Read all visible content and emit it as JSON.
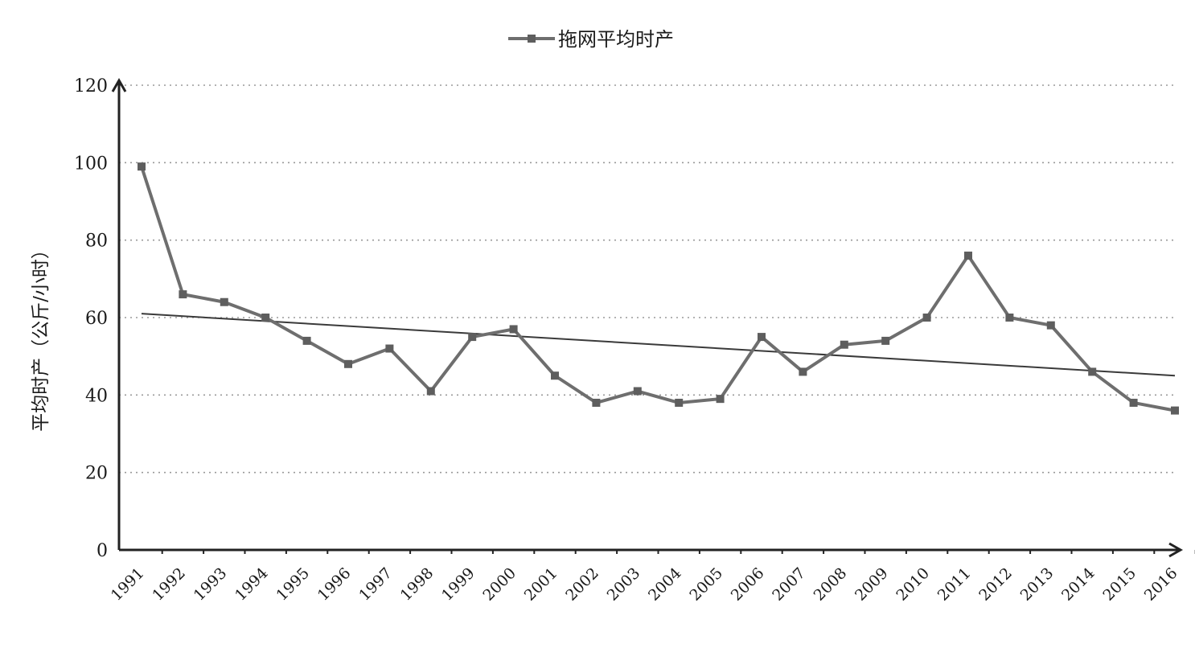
{
  "chart_data": {
    "type": "line",
    "title": "",
    "xlabel": "",
    "ylabel": "平均时产（公斤/小时）",
    "ylim": [
      0,
      120
    ],
    "yticks": [
      0,
      20,
      40,
      60,
      80,
      100,
      120
    ],
    "grid": true,
    "legend_position": "top-center",
    "categories": [
      "1991",
      "1992",
      "1993",
      "1994",
      "1995",
      "1996",
      "1997",
      "1998",
      "1999",
      "2000",
      "2001",
      "2002",
      "2003",
      "2004",
      "2005",
      "2006",
      "2007",
      "2008",
      "2009",
      "2010",
      "2011",
      "2012",
      "2013",
      "2014",
      "2015",
      "2016"
    ],
    "series": [
      {
        "name": "拖网平均时产",
        "values": [
          99,
          66,
          64,
          60,
          54,
          48,
          52,
          41,
          55,
          57,
          45,
          38,
          41,
          38,
          39,
          55,
          46,
          53,
          54,
          60,
          76,
          60,
          58,
          46,
          38,
          36
        ],
        "color": "#6e6e6e"
      }
    ],
    "trendline": {
      "type": "linear",
      "start": 61,
      "end": 45,
      "color": "#3a3a3a"
    }
  }
}
